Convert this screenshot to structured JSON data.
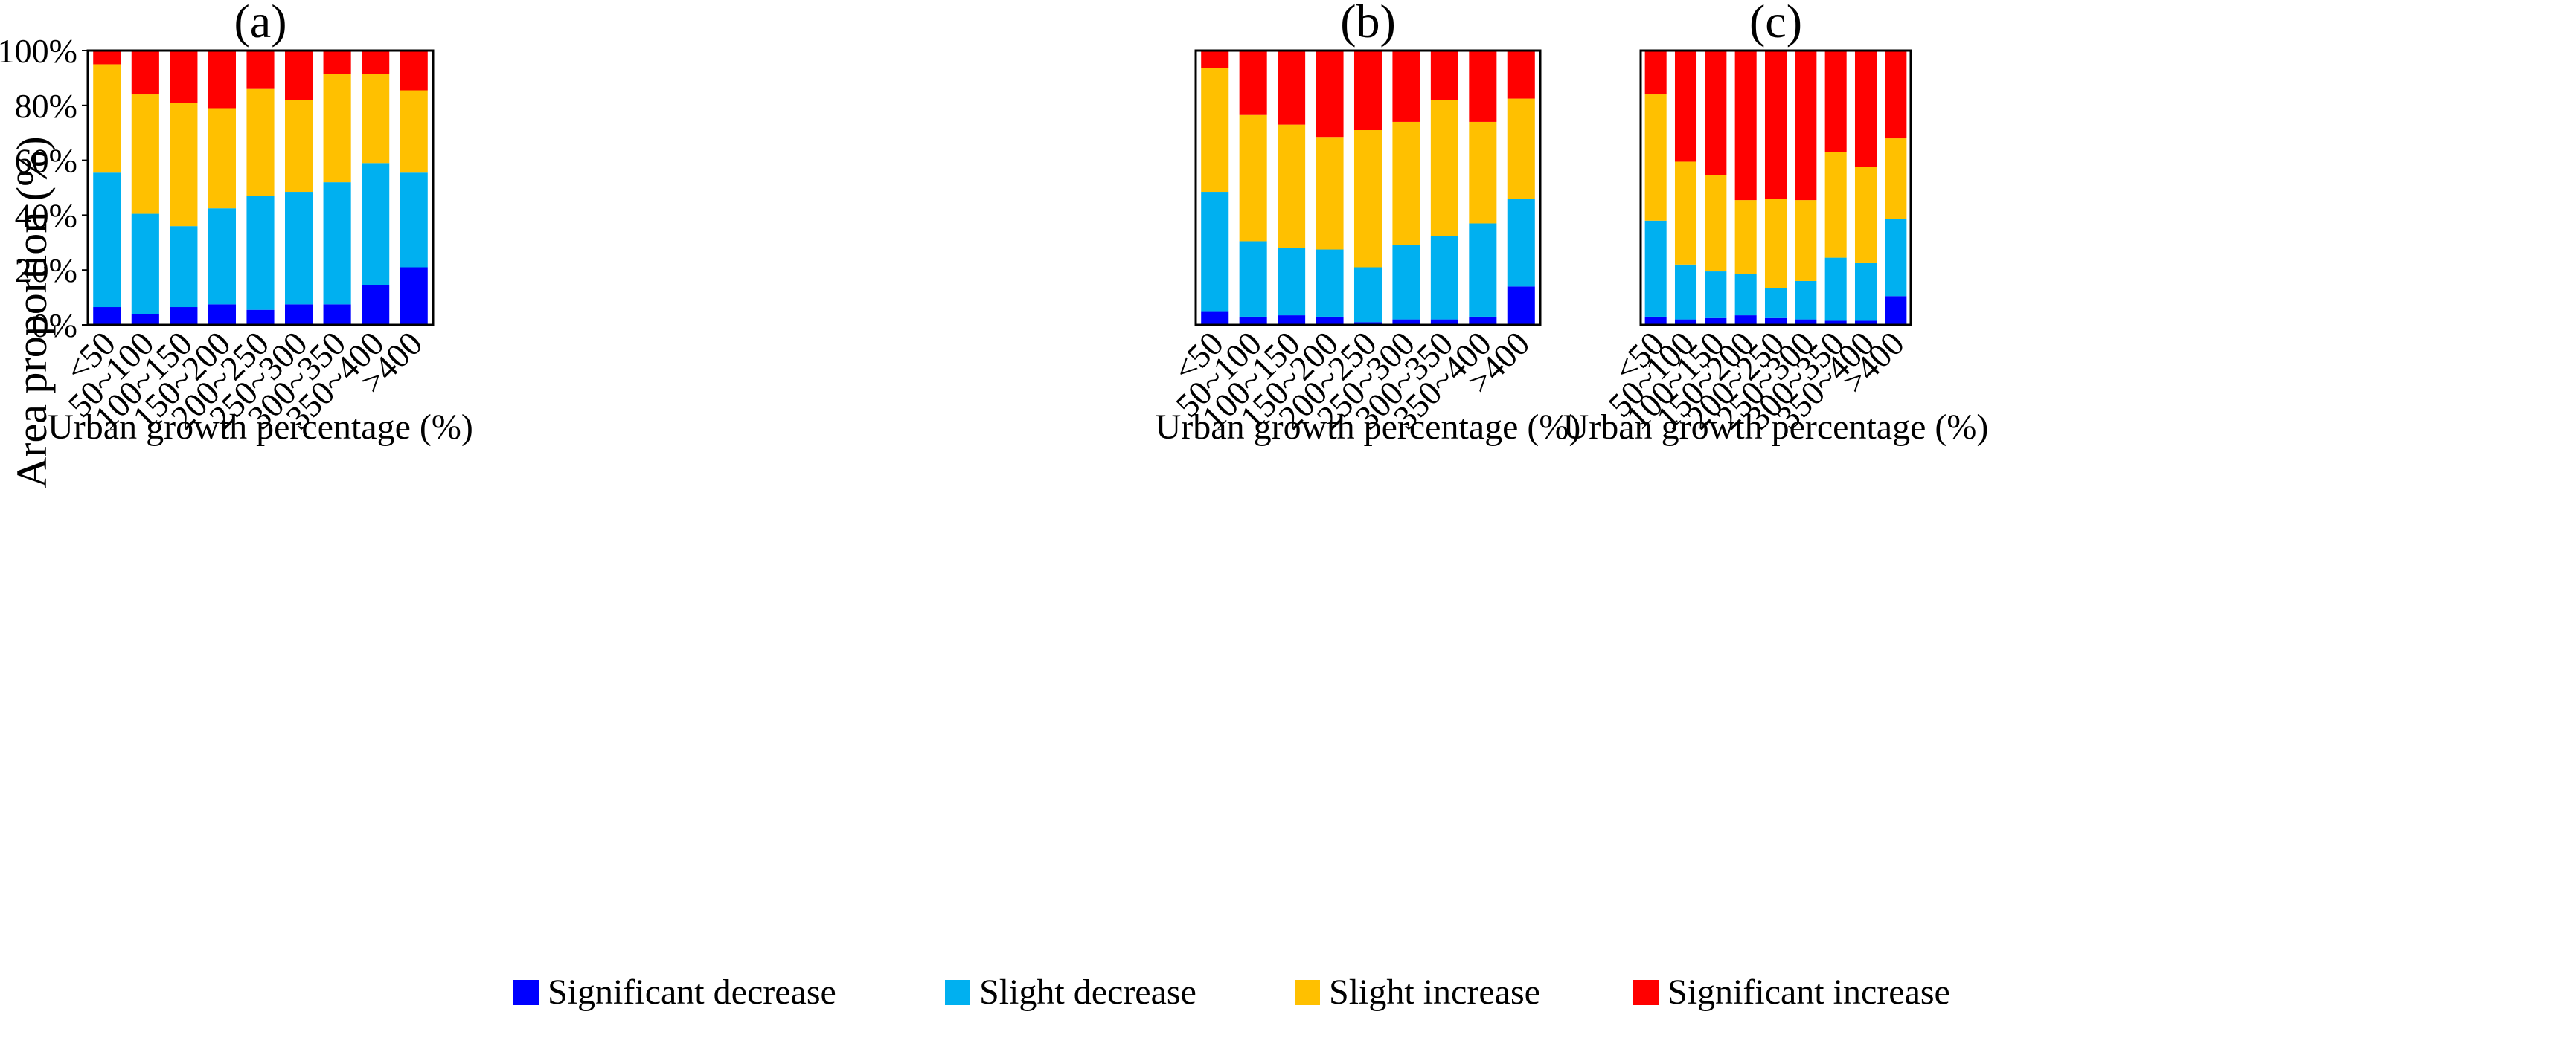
{
  "figure": {
    "ylabel": "Area proportion (%)",
    "xlabel": "Urban growth percentage (%)"
  },
  "legend": [
    {
      "label": "Significant decrease",
      "color": "#0000ff"
    },
    {
      "label": "Slight decrease",
      "color": "#00b0f0"
    },
    {
      "label": "Slight increase",
      "color": "#ffc000"
    },
    {
      "label": "Significant increase",
      "color": "#ff0000"
    }
  ],
  "chart_data": [
    {
      "type": "bar",
      "stacked": true,
      "title": "(a)",
      "xlabel": "Urban growth percentage (%)",
      "ylabel": "Area proportion (%)",
      "ylim": [
        0,
        100
      ],
      "yticks": [
        "0%",
        "20%",
        "40%",
        "60%",
        "80%",
        "100%"
      ],
      "categories": [
        "<50",
        "50~100",
        "100~150",
        "150~200",
        "200~250",
        "250~300",
        "300~350",
        "350~400",
        ">400"
      ],
      "series": [
        {
          "name": "Significant decrease",
          "values": [
            6.5,
            4,
            6.5,
            7.5,
            5.5,
            7.5,
            7.5,
            14.5,
            21
          ]
        },
        {
          "name": "Slight decrease",
          "values": [
            49,
            36.5,
            29.5,
            35,
            41.5,
            41,
            44.5,
            44.5,
            34.5
          ]
        },
        {
          "name": "Slight increase",
          "values": [
            39.5,
            43.5,
            45,
            36.5,
            39,
            33.5,
            39.5,
            32.5,
            30
          ]
        },
        {
          "name": "Significant increase",
          "values": [
            5,
            16,
            19,
            21,
            14,
            18,
            8.5,
            8.5,
            14.5
          ]
        }
      ]
    },
    {
      "type": "bar",
      "stacked": true,
      "title": "(b)",
      "xlabel": "Urban growth percentage (%)",
      "ylim": [
        0,
        100
      ],
      "categories": [
        "<50",
        "50~100",
        "100~150",
        "150~200",
        "200~250",
        "250~300",
        "300~350",
        "350~400",
        ">400"
      ],
      "series": [
        {
          "name": "Significant decrease",
          "values": [
            5,
            3,
            3.5,
            3,
            1,
            2,
            2,
            3,
            14
          ]
        },
        {
          "name": "Slight decrease",
          "values": [
            43.5,
            27.5,
            24.5,
            24.5,
            20,
            27,
            30.5,
            34,
            32
          ]
        },
        {
          "name": "Slight increase",
          "values": [
            45,
            46,
            45,
            41,
            50,
            45,
            49.5,
            37,
            36.5
          ]
        },
        {
          "name": "Significant increase",
          "values": [
            6.5,
            23.5,
            27,
            31.5,
            29,
            26,
            18,
            26,
            17.5
          ]
        }
      ]
    },
    {
      "type": "bar",
      "stacked": true,
      "title": "(c)",
      "xlabel": "Urban growth percentage (%)",
      "ylim": [
        0,
        100
      ],
      "categories": [
        "<50",
        "50~100",
        "100~150",
        "150~200",
        "200~250",
        "250~300",
        "300~350",
        "350~400",
        ">400"
      ],
      "series": [
        {
          "name": "Significant decrease",
          "values": [
            3,
            2,
            2.5,
            3.5,
            2.5,
            2,
            1.5,
            1.5,
            10.5
          ]
        },
        {
          "name": "Slight decrease",
          "values": [
            35,
            20,
            17,
            15,
            11,
            14,
            23,
            21,
            28
          ]
        },
        {
          "name": "Slight increase",
          "values": [
            46,
            37.5,
            35,
            27,
            32.5,
            29.5,
            38.5,
            35,
            29.5
          ]
        },
        {
          "name": "Significant increase",
          "values": [
            16,
            40.5,
            45.5,
            54.5,
            54,
            54.5,
            37,
            42.5,
            32
          ]
        }
      ]
    }
  ]
}
